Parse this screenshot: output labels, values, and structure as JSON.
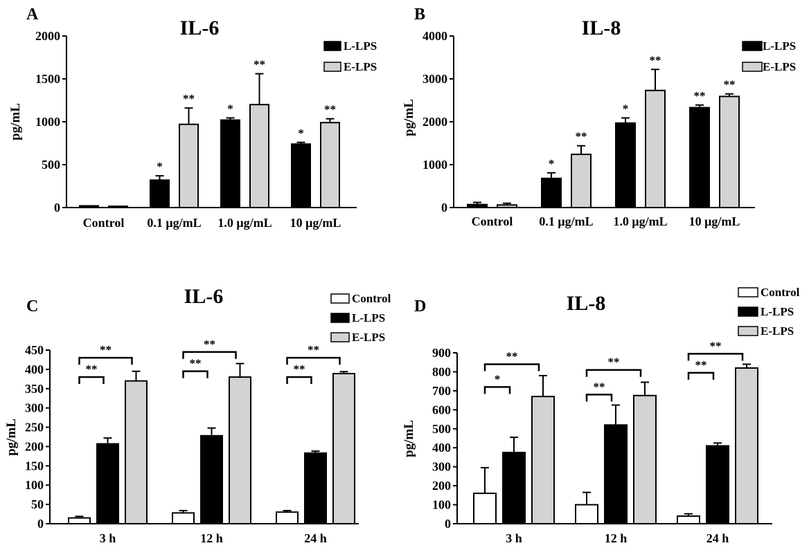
{
  "colors": {
    "Control": "#ffffff",
    "L-LPS": "#000000",
    "E-LPS": "#d3d3d3"
  },
  "chart_data": [
    {
      "id": "A",
      "type": "bar",
      "panel_label": "A",
      "title": "IL-6",
      "ylabel": "pg/mL",
      "xlabel": "",
      "ylim": [
        0,
        2000
      ],
      "yticks": [
        0,
        500,
        1000,
        1500,
        2000
      ],
      "categories": [
        "Control",
        "0.1 μg/mL",
        "1.0 μg/mL",
        "10 μg/mL"
      ],
      "legend": {
        "entries": [
          "L-LPS",
          "E-LPS"
        ],
        "placement": "top-right"
      },
      "grid": false,
      "series": [
        {
          "name": "L-LPS",
          "values": [
            20,
            320,
            1020,
            740
          ],
          "errors": [
            0,
            50,
            25,
            20
          ],
          "labels": [
            "",
            "*",
            "*",
            "*"
          ]
        },
        {
          "name": "E-LPS",
          "values": [
            15,
            970,
            1200,
            990
          ],
          "errors": [
            0,
            190,
            360,
            45
          ],
          "labels": [
            "",
            "**",
            "**",
            "**"
          ]
        }
      ],
      "brackets": []
    },
    {
      "id": "B",
      "type": "bar",
      "panel_label": "B",
      "title": "IL-8",
      "ylabel": "pg/mL",
      "xlabel": "",
      "ylim": [
        0,
        4000
      ],
      "yticks": [
        0,
        1000,
        2000,
        3000,
        4000
      ],
      "categories": [
        "Control",
        "0.1 μg/mL",
        "1.0 μg/mL",
        "10 μg/mL"
      ],
      "legend": {
        "entries": [
          "L-LPS",
          "E-LPS"
        ],
        "placement": "top-right"
      },
      "grid": false,
      "series": [
        {
          "name": "L-LPS",
          "values": [
            70,
            680,
            1970,
            2330
          ],
          "errors": [
            50,
            130,
            120,
            60
          ],
          "labels": [
            "",
            "*",
            "*",
            "**"
          ]
        },
        {
          "name": "E-LPS",
          "values": [
            60,
            1240,
            2730,
            2590
          ],
          "errors": [
            40,
            200,
            490,
            60
          ],
          "labels": [
            "",
            "**",
            "**",
            "**"
          ]
        }
      ],
      "brackets": []
    },
    {
      "id": "C",
      "type": "bar",
      "panel_label": "C",
      "title": "IL-6",
      "ylabel": "pg/mL",
      "xlabel": "",
      "ylim": [
        0,
        450
      ],
      "yticks": [
        0,
        50,
        100,
        150,
        200,
        250,
        300,
        350,
        400,
        450
      ],
      "categories": [
        "3 h",
        "12 h",
        "24 h"
      ],
      "legend": {
        "entries": [
          "Control",
          "L-LPS",
          "E-LPS"
        ],
        "placement": "top-right"
      },
      "grid": false,
      "series": [
        {
          "name": "Control",
          "values": [
            15,
            28,
            30
          ],
          "errors": [
            4,
            6,
            4
          ],
          "labels": [
            "",
            "",
            ""
          ]
        },
        {
          "name": "L-LPS",
          "values": [
            207,
            228,
            183
          ],
          "errors": [
            15,
            20,
            5
          ],
          "labels": [
            "",
            "",
            ""
          ]
        },
        {
          "name": "E-LPS",
          "values": [
            370,
            380,
            389
          ],
          "errors": [
            25,
            35,
            5
          ],
          "labels": [
            "",
            "",
            ""
          ]
        }
      ],
      "brackets": [
        {
          "category": 0,
          "from": 0,
          "to": 1,
          "y": 380,
          "label": "**"
        },
        {
          "category": 0,
          "from": 0,
          "to": 2,
          "y": 430,
          "label": "**"
        },
        {
          "category": 1,
          "from": 0,
          "to": 1,
          "y": 395,
          "label": "**"
        },
        {
          "category": 1,
          "from": 0,
          "to": 2,
          "y": 445,
          "label": "**"
        },
        {
          "category": 2,
          "from": 0,
          "to": 1,
          "y": 380,
          "label": "**"
        },
        {
          "category": 2,
          "from": 0,
          "to": 2,
          "y": 430,
          "label": "**"
        }
      ]
    },
    {
      "id": "D",
      "type": "bar",
      "panel_label": "D",
      "title": "IL-8",
      "ylabel": "pg/mL",
      "xlabel": "",
      "ylim": [
        0,
        900
      ],
      "yticks": [
        0,
        100,
        200,
        300,
        400,
        500,
        600,
        700,
        800,
        900
      ],
      "categories": [
        "3 h",
        "12 h",
        "24 h"
      ],
      "legend": {
        "entries": [
          "Control",
          "L-LPS",
          "E-LPS"
        ],
        "placement": "top-right"
      },
      "grid": false,
      "series": [
        {
          "name": "Control",
          "values": [
            160,
            100,
            40
          ],
          "errors": [
            135,
            65,
            12
          ],
          "labels": [
            "",
            "",
            ""
          ]
        },
        {
          "name": "L-LPS",
          "values": [
            375,
            520,
            410
          ],
          "errors": [
            80,
            105,
            15
          ],
          "labels": [
            "",
            "",
            ""
          ]
        },
        {
          "name": "E-LPS",
          "values": [
            670,
            675,
            820
          ],
          "errors": [
            110,
            70,
            20
          ],
          "labels": [
            "",
            "",
            ""
          ]
        }
      ],
      "brackets": [
        {
          "category": 0,
          "from": 0,
          "to": 1,
          "y": 720,
          "label": "*"
        },
        {
          "category": 0,
          "from": 0,
          "to": 2,
          "y": 840,
          "label": "**"
        },
        {
          "category": 1,
          "from": 0,
          "to": 1,
          "y": 680,
          "label": "**"
        },
        {
          "category": 1,
          "from": 0,
          "to": 2,
          "y": 810,
          "label": "**"
        },
        {
          "category": 2,
          "from": 0,
          "to": 1,
          "y": 795,
          "label": "**"
        },
        {
          "category": 2,
          "from": 0,
          "to": 2,
          "y": 895,
          "label": "**"
        }
      ]
    }
  ]
}
